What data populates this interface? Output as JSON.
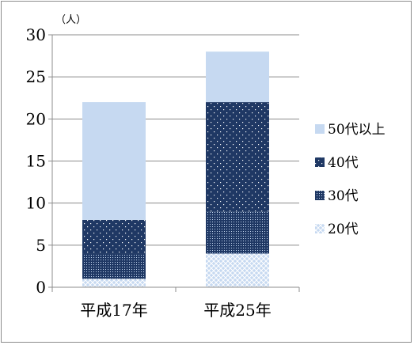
{
  "chart_data": {
    "type": "bar",
    "stacked": true,
    "unit_label": "（人）",
    "categories": [
      "平成17年",
      "平成25年"
    ],
    "series": [
      {
        "name": "20代",
        "values": [
          1,
          4
        ],
        "color": "#c6d9f1",
        "pattern": "crosshatch"
      },
      {
        "name": "30代",
        "values": [
          3,
          5
        ],
        "color": "#1f3864",
        "pattern": "dense-dots"
      },
      {
        "name": "40代",
        "values": [
          4,
          13
        ],
        "color": "#1f3864",
        "pattern": "sparse-dots"
      },
      {
        "name": "50代以上",
        "values": [
          14,
          6
        ],
        "color": "#c6d9f1",
        "pattern": "solid"
      }
    ],
    "ylim": [
      0,
      30
    ],
    "yticks": [
      0,
      5,
      10,
      15,
      20,
      25,
      30
    ],
    "grid": true,
    "legend_position": "right"
  }
}
